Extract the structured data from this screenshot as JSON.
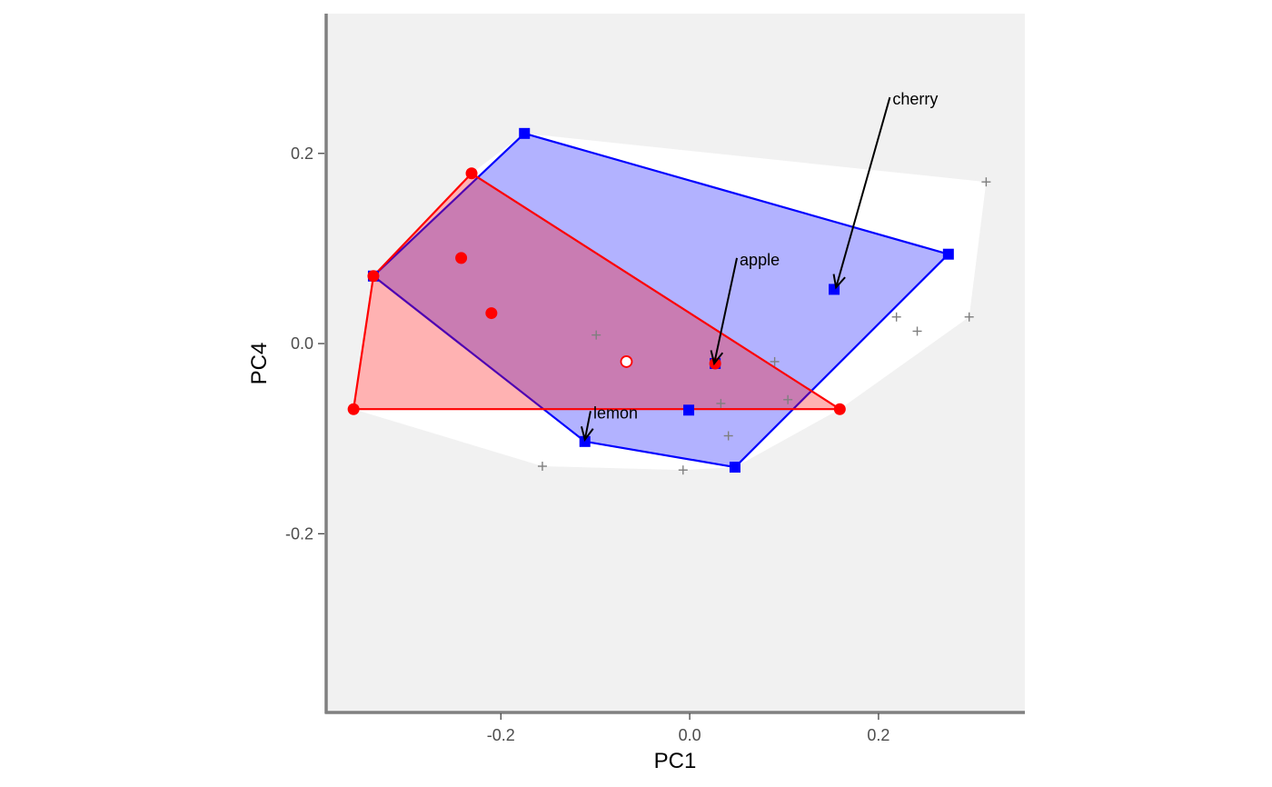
{
  "chart_data": {
    "type": "scatter",
    "title": "",
    "xlabel": "PC1",
    "ylabel": "PC4",
    "xlim": [
      -0.385,
      0.355
    ],
    "ylim": [
      -0.388,
      0.347
    ],
    "x_ticks": [
      -0.2,
      0.0,
      0.2
    ],
    "y_ticks": [
      -0.2,
      0.0,
      0.2
    ],
    "x_tick_labels": [
      "-0.2",
      "0.0",
      "0.2"
    ],
    "y_tick_labels": [
      "-0.2",
      "0.0",
      "0.2"
    ],
    "legend": "none",
    "grid": false,
    "colors": {
      "panel_background": "#f1f1f1",
      "all_hull_fill": "#ffffff",
      "blue": "#0000ff",
      "blue_fill": "#0000ff",
      "red": "#ff0000",
      "red_fill": "#ff0000",
      "grey_points": "#7f7f7f",
      "axis_line": "#808080"
    },
    "series": [
      {
        "marker": "plus",
        "color": "#7f7f7f",
        "points": [
          [
            0.314,
            0.17
          ],
          [
            0.296,
            0.028
          ],
          [
            0.219,
            0.028
          ],
          [
            0.241,
            0.013
          ],
          [
            -0.099,
            0.009
          ],
          [
            0.09,
            -0.019
          ],
          [
            0.033,
            -0.063
          ],
          [
            0.104,
            -0.059
          ],
          [
            0.041,
            -0.097
          ],
          [
            -0.156,
            -0.129
          ],
          [
            -0.007,
            -0.133
          ]
        ]
      },
      {
        "marker": "square",
        "color": "#0000ff",
        "points": [
          [
            -0.175,
            0.221
          ],
          [
            0.274,
            0.094
          ],
          [
            0.153,
            0.057
          ],
          [
            0.027,
            -0.021
          ],
          [
            -0.001,
            -0.07
          ],
          [
            -0.111,
            -0.103
          ],
          [
            0.048,
            -0.13
          ],
          [
            -0.335,
            0.071
          ]
        ]
      },
      {
        "marker": "circle",
        "color": "#ff0000",
        "points": [
          [
            -0.231,
            0.179
          ],
          [
            -0.242,
            0.09
          ],
          [
            -0.21,
            0.032
          ],
          [
            -0.335,
            0.071
          ],
          [
            -0.356,
            -0.069
          ],
          [
            0.159,
            -0.069
          ],
          [
            0.027,
            -0.021
          ]
        ]
      },
      {
        "marker": "open-circle",
        "color": "#ff0000",
        "points": [
          [
            -0.067,
            -0.019
          ]
        ]
      }
    ],
    "hulls": [
      {
        "fill": "#ffffff",
        "stroke": "none",
        "opacity": 1,
        "points": [
          [
            -0.175,
            0.221
          ],
          [
            0.314,
            0.17
          ],
          [
            0.296,
            0.028
          ],
          [
            0.159,
            -0.069
          ],
          [
            0.048,
            -0.13
          ],
          [
            -0.007,
            -0.133
          ],
          [
            -0.156,
            -0.129
          ],
          [
            -0.356,
            -0.069
          ],
          [
            -0.335,
            0.071
          ],
          [
            -0.231,
            0.179
          ]
        ]
      },
      {
        "fill": "#0000ff",
        "stroke": "#0000ff",
        "opacity": 0.3,
        "points": [
          [
            -0.175,
            0.221
          ],
          [
            0.274,
            0.094
          ],
          [
            0.048,
            -0.13
          ],
          [
            -0.111,
            -0.103
          ],
          [
            -0.335,
            0.071
          ]
        ]
      },
      {
        "fill": "#ff0000",
        "stroke": "#ff0000",
        "opacity": 0.3,
        "points": [
          [
            -0.231,
            0.179
          ],
          [
            0.159,
            -0.069
          ],
          [
            -0.356,
            -0.069
          ],
          [
            -0.335,
            0.071
          ]
        ]
      }
    ],
    "annotations": [
      {
        "text": "cherry",
        "label_pos": [
          0.212,
          0.259
        ],
        "target": [
          0.155,
          0.059
        ]
      },
      {
        "text": "apple",
        "label_pos": [
          0.05,
          0.09
        ],
        "target": [
          0.026,
          -0.021
        ]
      },
      {
        "text": "lemon",
        "label_pos": [
          -0.105,
          -0.071
        ],
        "target": [
          -0.111,
          -0.101
        ]
      }
    ]
  }
}
